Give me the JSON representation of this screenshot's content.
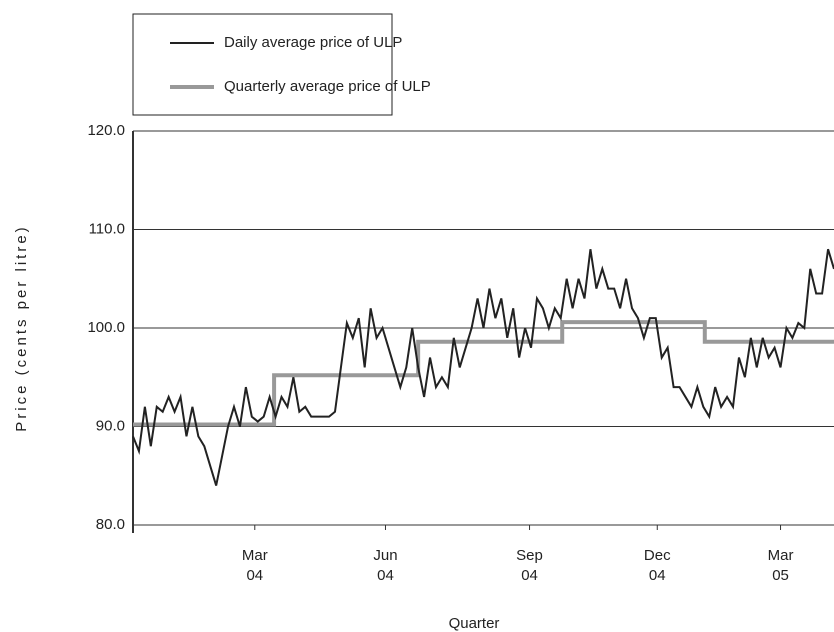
{
  "chart_data": {
    "type": "line",
    "ylabel": "Price (cents per litre)",
    "xlabel": "Quarter",
    "xlim": [
      0,
      472
    ],
    "xticks": [
      {
        "value": 82,
        "label": "Mar\n04"
      },
      {
        "value": 170,
        "label": "Jun\n04"
      },
      {
        "value": 267,
        "label": "Sep\n04"
      },
      {
        "value": 353,
        "label": "Dec\n04"
      },
      {
        "value": 436,
        "label": "Mar\n05"
      }
    ],
    "ylim": [
      80,
      120
    ],
    "yticks": [
      {
        "value": 80,
        "label": "80.0"
      },
      {
        "value": 90,
        "label": "90.0"
      },
      {
        "value": 100,
        "label": "100.0"
      },
      {
        "value": 110,
        "label": "110.0"
      },
      {
        "value": 120,
        "label": "120.0"
      }
    ],
    "grid": true,
    "series": [
      {
        "name": "Daily average price of ULP",
        "color": "#222222",
        "width": 2,
        "x": [
          0,
          4,
          8,
          12,
          16,
          20,
          24,
          28,
          32,
          36,
          40,
          44,
          48,
          52,
          56,
          60,
          64,
          68,
          72,
          76,
          80,
          84,
          88,
          92,
          96,
          100,
          104,
          108,
          112,
          116,
          120,
          124,
          128,
          132,
          136,
          140,
          144,
          148,
          152,
          156,
          160,
          164,
          168,
          172,
          176,
          180,
          184,
          188,
          192,
          196,
          200,
          204,
          208,
          212,
          216,
          220,
          224,
          228,
          232,
          236,
          240,
          244,
          248,
          252,
          256,
          260,
          264,
          268,
          272,
          276,
          280,
          284,
          288,
          292,
          296,
          300,
          304,
          308,
          312,
          316,
          320,
          324,
          328,
          332,
          336,
          340,
          344,
          348,
          352,
          356,
          360,
          364,
          368,
          372,
          376,
          380,
          384,
          388,
          392,
          396,
          400,
          404,
          408,
          412,
          416,
          420,
          424,
          428,
          432,
          436,
          440,
          444,
          448,
          452,
          456,
          460,
          464,
          468,
          472
        ],
        "values": [
          89,
          87.5,
          92,
          88,
          92,
          91.5,
          93,
          91.5,
          93,
          89,
          92,
          89,
          88,
          86,
          84,
          87,
          90,
          92,
          90,
          94,
          91,
          90.5,
          91,
          93,
          91,
          93,
          92,
          95,
          91.5,
          92,
          91,
          91,
          91,
          91,
          91.5,
          96,
          100.5,
          99,
          101,
          96,
          102,
          99,
          100,
          98,
          96,
          94,
          96,
          100,
          96,
          93,
          97,
          94,
          95,
          94,
          99,
          96,
          98,
          100,
          103,
          100,
          104,
          101,
          103,
          99,
          102,
          97,
          100,
          98,
          103,
          102,
          100,
          102,
          101,
          105,
          102,
          105,
          103,
          108,
          104,
          106,
          104,
          104,
          102,
          105,
          102,
          101,
          99,
          101,
          101,
          97,
          98,
          94,
          94,
          93,
          92,
          94,
          92,
          91,
          94,
          92,
          93,
          92,
          97,
          95,
          99,
          96,
          99,
          97,
          98,
          96,
          100,
          99,
          100.5,
          100,
          106,
          103.5,
          103.5,
          108,
          106
        ]
      },
      {
        "name": "Quarterly average price of ULP",
        "color": "#999999",
        "width": 4,
        "x": [
          0,
          95,
          95,
          192,
          192,
          289,
          289,
          385,
          385,
          472
        ],
        "values": [
          90.2,
          90.2,
          95.2,
          95.2,
          98.6,
          98.6,
          100.6,
          100.6,
          98.6,
          98.6
        ]
      }
    ]
  }
}
